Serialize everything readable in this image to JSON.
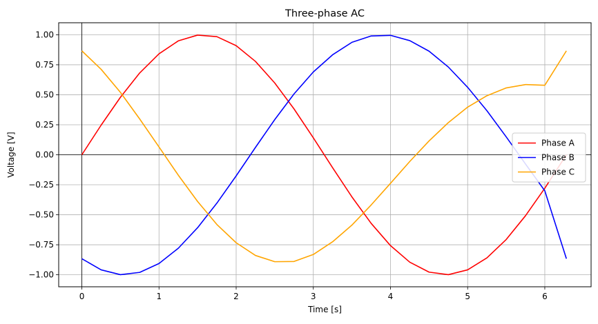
{
  "chart_data": {
    "type": "line",
    "title": "Three-phase AC",
    "xlabel": "Time [s]",
    "ylabel": "Voltage [V]",
    "xlim": [
      -0.3,
      6.6
    ],
    "ylim": [
      -1.1,
      1.1
    ],
    "xticks": [
      0,
      1,
      2,
      3,
      4,
      5,
      6
    ],
    "xtick_labels": [
      "0",
      "1",
      "2",
      "3",
      "4",
      "5",
      "6"
    ],
    "yticks": [
      -1.0,
      -0.75,
      -0.5,
      -0.25,
      0.0,
      0.25,
      0.5,
      0.75,
      1.0
    ],
    "ytick_labels": [
      "−1.00",
      "−0.75",
      "−0.50",
      "−0.25",
      "0.00",
      "0.25",
      "0.50",
      "0.75",
      "1.00"
    ],
    "grid": true,
    "zero_lines": true,
    "legend_position": "center-right",
    "x": [
      0,
      0.25,
      0.5,
      0.75,
      1.0,
      1.25,
      1.5,
      1.75,
      2.0,
      2.25,
      2.5,
      2.75,
      3.0,
      3.25,
      3.5,
      3.75,
      4.0,
      4.25,
      4.5,
      4.75,
      5.0,
      5.25,
      5.5,
      5.75,
      6.0,
      6.28
    ],
    "series": [
      {
        "name": "Phase A",
        "color": "#ff0000",
        "values": [
          0.0,
          0.247,
          0.479,
          0.682,
          0.841,
          0.949,
          0.997,
          0.984,
          0.909,
          0.778,
          0.598,
          0.382,
          0.141,
          -0.108,
          -0.351,
          -0.572,
          -0.757,
          -0.895,
          -0.978,
          -0.999,
          -0.959,
          -0.859,
          -0.706,
          -0.508,
          -0.279,
          0.0
        ]
      },
      {
        "name": "Phase B",
        "color": "#0000ff",
        "values": [
          -0.866,
          -0.959,
          -0.999,
          -0.98,
          -0.906,
          -0.779,
          -0.608,
          -0.403,
          -0.176,
          0.061,
          0.293,
          0.507,
          0.69,
          0.833,
          0.937,
          0.99,
          0.995,
          0.951,
          0.863,
          0.731,
          0.562,
          0.367,
          0.149,
          -0.077,
          -0.3,
          -0.866
        ]
      },
      {
        "name": "Phase C",
        "color": "#ffa500",
        "values": [
          0.866,
          0.712,
          0.52,
          0.298,
          0.065,
          -0.17,
          -0.389,
          -0.581,
          -0.733,
          -0.839,
          -0.891,
          -0.889,
          -0.831,
          -0.725,
          -0.586,
          -0.418,
          -0.238,
          -0.056,
          0.115,
          0.268,
          0.397,
          0.492,
          0.557,
          0.585,
          0.579,
          0.866
        ]
      }
    ]
  }
}
